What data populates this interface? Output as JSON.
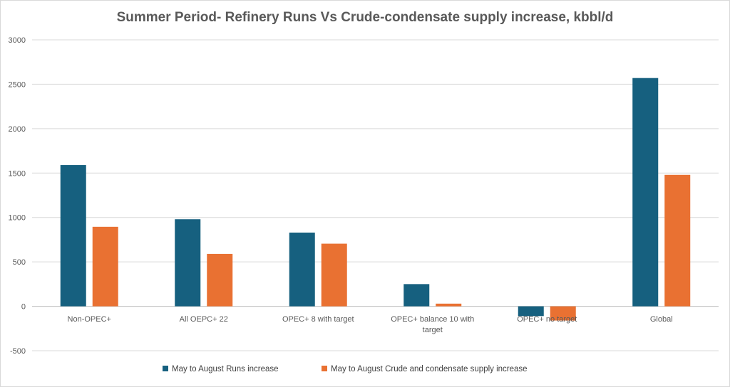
{
  "chart_data": {
    "type": "bar",
    "title": "Summer Period- Refinery Runs Vs Crude-condensate supply increase, kbbl/d",
    "categories": [
      [
        "Non-OPEC+"
      ],
      [
        "All OEPC+ 22"
      ],
      [
        "OPEC+ 8 with target"
      ],
      [
        "OPEC+ balance 10 with",
        "target"
      ],
      [
        "OPEC+ no target"
      ],
      [
        "Global"
      ]
    ],
    "series": [
      {
        "name": "May to August Runs increase",
        "color": "#16607f",
        "values": [
          1590,
          980,
          830,
          250,
          -110,
          2570
        ]
      },
      {
        "name": "May to August Crude and condensate supply increase",
        "color": "#e97132",
        "values": [
          895,
          590,
          705,
          30,
          -160,
          1480
        ]
      }
    ],
    "ylim": [
      -500,
      3000
    ],
    "yticks": [
      -500,
      0,
      500,
      1000,
      1500,
      2000,
      2500,
      3000
    ],
    "grid": true,
    "legend_position": "bottom"
  }
}
